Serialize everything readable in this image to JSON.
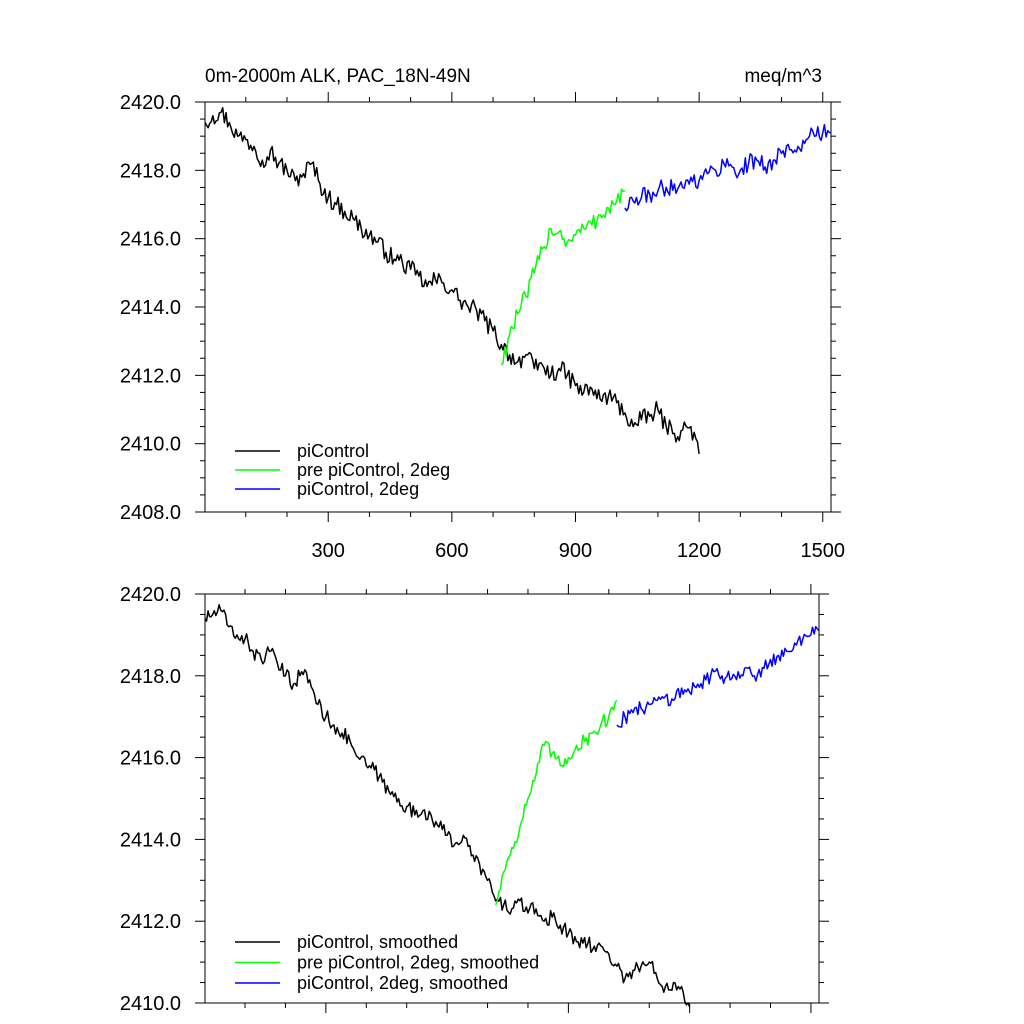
{
  "chart_data": [
    {
      "type": "line",
      "title": "0m-2000m ALK, PAC_18N-49N",
      "units": "meq/m^3",
      "xlim": [
        1,
        1520
      ],
      "ylim": [
        2408.0,
        2420.0
      ],
      "x_ticks": [
        300,
        600,
        900,
        1200,
        1500
      ],
      "x_tick_labels": [
        "300",
        "600",
        "900",
        "1200",
        "1500"
      ],
      "y_ticks": [
        2408.0,
        2410.0,
        2412.0,
        2414.0,
        2416.0,
        2418.0,
        2420.0
      ],
      "y_tick_labels": [
        "2408.0",
        "2410.0",
        "2412.0",
        "2414.0",
        "2416.0",
        "2418.0",
        "2420.0"
      ],
      "legend_position": "bottom-left",
      "series": [
        {
          "name": "piControl",
          "color": "#000000",
          "x": [
            1,
            20,
            40,
            60,
            80,
            100,
            120,
            140,
            160,
            180,
            200,
            220,
            240,
            260,
            280,
            300,
            320,
            340,
            360,
            380,
            400,
            420,
            440,
            460,
            480,
            500,
            520,
            540,
            560,
            580,
            600,
            620,
            640,
            660,
            680,
            700,
            720,
            740,
            760,
            780,
            800,
            820,
            840,
            860,
            880,
            900,
            920,
            940,
            960,
            980,
            1000,
            1020,
            1040,
            1060,
            1080,
            1100,
            1120,
            1140,
            1160,
            1180,
            1200
          ],
          "values": [
            2419.4,
            2419.6,
            2419.7,
            2419.4,
            2419.0,
            2418.9,
            2418.7,
            2418.3,
            2418.6,
            2418.2,
            2418.0,
            2417.7,
            2417.9,
            2418.2,
            2417.6,
            2417.2,
            2417.0,
            2416.8,
            2416.6,
            2416.3,
            2416.1,
            2415.9,
            2415.6,
            2415.4,
            2415.3,
            2415.1,
            2414.9,
            2414.6,
            2414.8,
            2414.7,
            2414.5,
            2414.2,
            2414.0,
            2413.9,
            2413.6,
            2413.3,
            2412.9,
            2412.6,
            2412.4,
            2412.6,
            2412.2,
            2412.3,
            2412.0,
            2412.2,
            2412.0,
            2411.7,
            2411.5,
            2411.6,
            2411.3,
            2411.4,
            2411.2,
            2410.9,
            2410.5,
            2410.7,
            2410.8,
            2411.0,
            2410.5,
            2410.3,
            2410.4,
            2410.5,
            2409.7
          ]
        },
        {
          "name": "pre piControl, 2deg",
          "color": "#00ff00",
          "x": [
            720,
            740,
            760,
            780,
            800,
            820,
            840,
            860,
            880,
            900,
            920,
            940,
            960,
            980,
            1000,
            1020
          ],
          "values": [
            2412.3,
            2413.2,
            2413.8,
            2414.3,
            2415.0,
            2415.7,
            2416.3,
            2416.2,
            2415.9,
            2416.1,
            2416.3,
            2416.4,
            2416.7,
            2416.9,
            2417.1,
            2417.4
          ]
        },
        {
          "name": "piControl, 2deg",
          "color": "#0000ff",
          "x": [
            1020,
            1040,
            1060,
            1080,
            1100,
            1120,
            1140,
            1160,
            1180,
            1200,
            1220,
            1240,
            1260,
            1280,
            1300,
            1320,
            1340,
            1360,
            1380,
            1400,
            1420,
            1440,
            1460,
            1480,
            1500,
            1520
          ],
          "values": [
            2416.9,
            2417.1,
            2417.2,
            2417.3,
            2417.4,
            2417.5,
            2417.6,
            2417.5,
            2417.8,
            2417.7,
            2417.9,
            2418.0,
            2418.2,
            2418.1,
            2418.0,
            2418.2,
            2418.3,
            2418.1,
            2418.3,
            2418.5,
            2418.6,
            2418.7,
            2418.9,
            2419.0,
            2419.1,
            2419.1
          ]
        }
      ]
    },
    {
      "type": "line",
      "title": "",
      "xlim": [
        1,
        1520
      ],
      "ylim": [
        2410.0,
        2420.0
      ],
      "y_ticks": [
        2410.0,
        2412.0,
        2414.0,
        2416.0,
        2418.0,
        2420.0
      ],
      "y_tick_labels": [
        "2410.0",
        "2412.0",
        "2414.0",
        "2416.0",
        "2418.0",
        "2420.0"
      ],
      "legend_position": "bottom-left",
      "series": [
        {
          "name": "piControl, smoothed",
          "color": "#000000",
          "x": [
            1,
            20,
            40,
            60,
            80,
            100,
            120,
            140,
            160,
            180,
            200,
            220,
            240,
            260,
            280,
            300,
            320,
            340,
            360,
            380,
            400,
            420,
            440,
            460,
            480,
            500,
            520,
            540,
            560,
            580,
            600,
            620,
            640,
            660,
            680,
            700,
            720,
            740,
            760,
            780,
            800,
            820,
            840,
            860,
            880,
            900,
            920,
            940,
            960,
            980,
            1000,
            1020,
            1040,
            1060,
            1080,
            1100,
            1120,
            1140,
            1160,
            1180,
            1200
          ],
          "values": [
            2419.4,
            2419.5,
            2419.6,
            2419.2,
            2419.0,
            2418.9,
            2418.6,
            2418.4,
            2418.6,
            2418.3,
            2418.0,
            2417.8,
            2418.1,
            2417.9,
            2417.3,
            2417.0,
            2416.8,
            2416.6,
            2416.4,
            2416.0,
            2415.8,
            2415.7,
            2415.4,
            2415.1,
            2415.0,
            2414.8,
            2414.6,
            2414.7,
            2414.6,
            2414.3,
            2414.1,
            2413.9,
            2414.1,
            2413.6,
            2413.4,
            2413.0,
            2412.5,
            2412.4,
            2412.3,
            2412.5,
            2412.2,
            2412.3,
            2412.0,
            2412.1,
            2411.9,
            2411.7,
            2411.5,
            2411.6,
            2411.3,
            2411.4,
            2411.2,
            2410.9,
            2410.6,
            2410.8,
            2410.9,
            2411.0,
            2410.6,
            2410.4,
            2410.5,
            2410.4,
            2409.9
          ]
        },
        {
          "name": "pre piControl, 2deg, smoothed",
          "color": "#00ff00",
          "x": [
            720,
            740,
            760,
            780,
            800,
            820,
            840,
            860,
            880,
            900,
            920,
            940,
            960,
            980,
            1000,
            1020
          ],
          "values": [
            2412.4,
            2413.2,
            2413.8,
            2414.3,
            2415.0,
            2415.6,
            2416.3,
            2416.1,
            2415.8,
            2416.0,
            2416.3,
            2416.4,
            2416.6,
            2416.8,
            2417.0,
            2417.4
          ]
        },
        {
          "name": "piControl, 2deg, smoothed",
          "color": "#0000ff",
          "x": [
            1020,
            1040,
            1060,
            1080,
            1100,
            1120,
            1140,
            1160,
            1180,
            1200,
            1220,
            1240,
            1260,
            1280,
            1300,
            1320,
            1340,
            1360,
            1380,
            1400,
            1420,
            1440,
            1460,
            1480,
            1500,
            1520
          ],
          "values": [
            2416.8,
            2417.0,
            2417.1,
            2417.2,
            2417.3,
            2417.4,
            2417.5,
            2417.4,
            2417.7,
            2417.6,
            2417.8,
            2417.9,
            2418.1,
            2418.0,
            2417.9,
            2418.1,
            2418.2,
            2418.0,
            2418.2,
            2418.4,
            2418.5,
            2418.6,
            2418.8,
            2418.9,
            2419.0,
            2419.1
          ]
        }
      ]
    }
  ]
}
